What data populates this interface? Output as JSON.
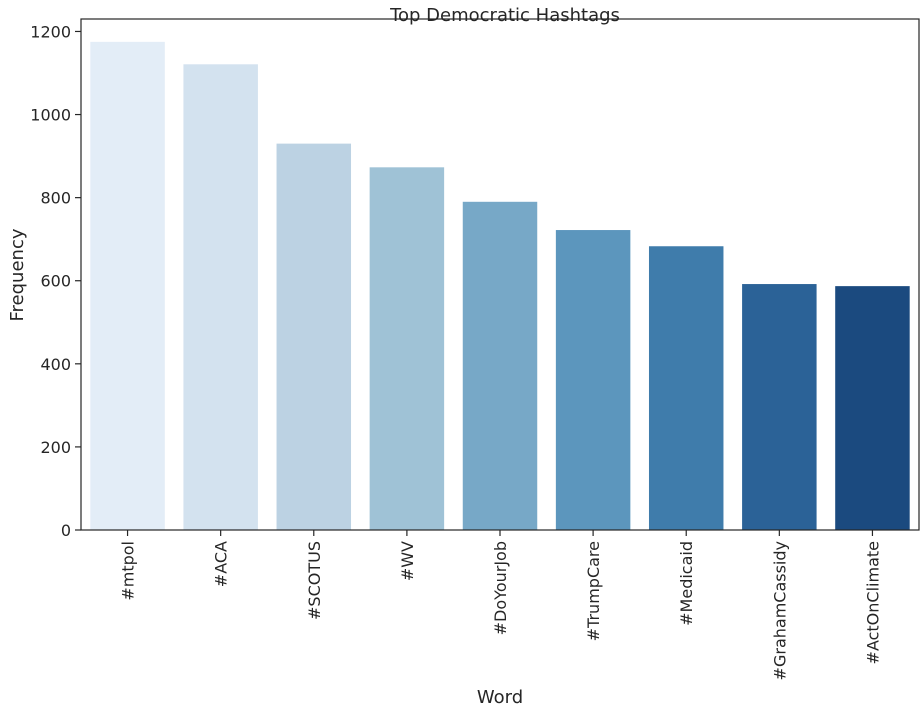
{
  "chart_data": {
    "type": "bar",
    "title": "Top Democratic Hashtags",
    "xlabel": "Word",
    "ylabel": "Frequency",
    "ylim": [
      0,
      1230
    ],
    "yticks": [
      0,
      200,
      400,
      600,
      800,
      1000,
      1200
    ],
    "grid": false,
    "categories": [
      "#mtpol",
      "#ACA",
      "#SCOTUS",
      "#WV",
      "#DoYourJob",
      "#TrumpCare",
      "#Medicaid",
      "#GrahamCassidy",
      "#ActOnClimate"
    ],
    "values": [
      1175,
      1121,
      930,
      873,
      790,
      722,
      683,
      592,
      587
    ],
    "colors": [
      "#e3edf7",
      "#d3e2ef",
      "#bcd2e3",
      "#9fc2d6",
      "#77a8c7",
      "#5c96bd",
      "#3f7cab",
      "#2b6297",
      "#1b4a7f"
    ]
  }
}
